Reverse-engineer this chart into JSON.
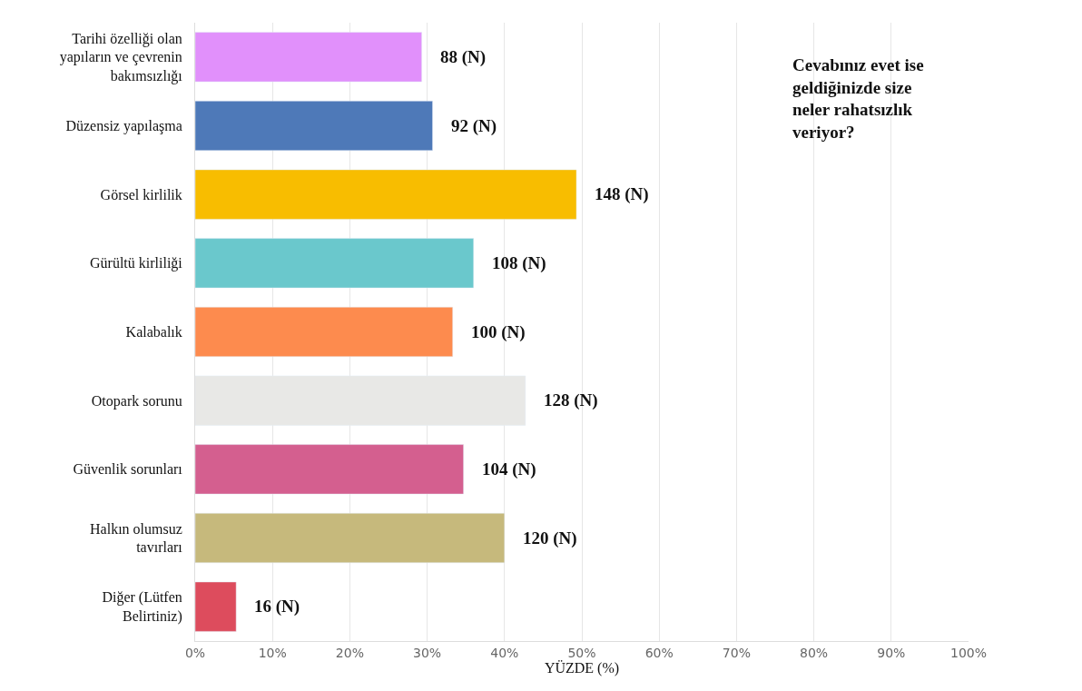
{
  "chart_data": {
    "type": "bar",
    "orientation": "horizontal",
    "title": "Cevabınız evet ise geldiğinizde size neler rahatsızlık veriyor?",
    "xlabel": "YÜZDE (%)",
    "categories": [
      "Tarihi özelliği olan yapıların ve çevrenin bakımsızlığı",
      "Düzensiz yapılaşma",
      "Görsel kirlilik",
      "Gürültü kirliliği",
      "Kalabalık",
      "Otopark sorunu",
      "Güvenlik sorunları",
      "Halkın olumsuz tavırları",
      "Diğer (Lütfen Belirtiniz)"
    ],
    "values": [
      29.3,
      30.7,
      49.3,
      36,
      33.3,
      42.7,
      34.7,
      40,
      5.3
    ],
    "colors": [
      "#e190fb",
      "#4e79b8",
      "#f8bd00",
      "#6ac8cc",
      "#fd8b4e",
      "#e8e8e6",
      "#d45f8f",
      "#c6b97c",
      "#dd4c5d"
    ],
    "annotations": [
      {
        "text": "88 (N)",
        "x": 29.3,
        "y": "Tarihi özelliği olan yapıların ve çevrenin bakımsızlığı"
      },
      {
        "text": "92 (N)",
        "x": 30.7,
        "y": "Düzensiz yapılaşma"
      },
      {
        "text": "148 (N)",
        "x": 49.3,
        "y": "Görsel kirlilik"
      },
      {
        "text": "108 (N)",
        "x": 36,
        "y": "Gürültü kirliliği"
      },
      {
        "text": "100 (N)",
        "x": 33.3,
        "y": "Kalabalık"
      },
      {
        "text": "128 (N)",
        "x": 42.7,
        "y": "Otopark sorunu"
      },
      {
        "text": "104 (N)",
        "x": 34.7,
        "y": "Güvenlik sorunları"
      },
      {
        "text": "120 (N)",
        "x": 40,
        "y": "Halkın olumsuz tavırları"
      },
      {
        "text": "16 (N)",
        "x": 5.3,
        "y": "Diğer (Lütfen Belirtiniz)"
      }
    ],
    "xlim": [
      0,
      100
    ],
    "xticks": [
      {
        "value": 0,
        "label": "0%"
      },
      {
        "value": 10,
        "label": "10%"
      },
      {
        "value": 20,
        "label": "20%"
      },
      {
        "value": 30,
        "label": "30%"
      },
      {
        "value": 40,
        "label": "40%"
      },
      {
        "value": 50,
        "label": "50%"
      },
      {
        "value": 60,
        "label": "60%"
      },
      {
        "value": 70,
        "label": "70%"
      },
      {
        "value": 80,
        "label": "80%"
      },
      {
        "value": 90,
        "label": "90%"
      },
      {
        "value": 100,
        "label": "100%"
      }
    ],
    "grid": "x",
    "legend": false
  }
}
